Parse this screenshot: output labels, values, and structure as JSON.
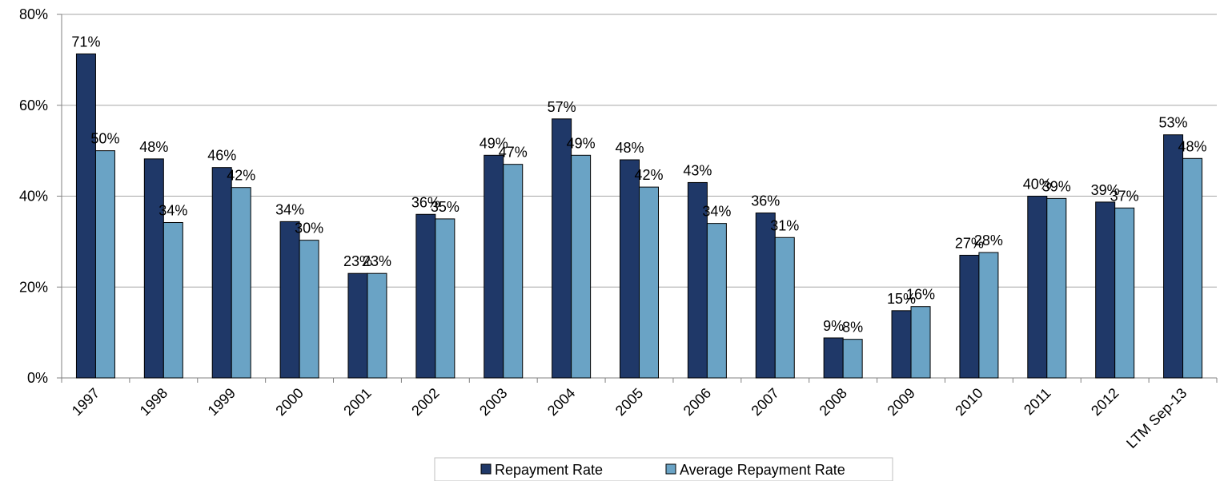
{
  "chart_data": {
    "type": "bar",
    "categories": [
      "1997",
      "1998",
      "1999",
      "2000",
      "2001",
      "2002",
      "2003",
      "2004",
      "2005",
      "2006",
      "2007",
      "2008",
      "2009",
      "2010",
      "2011",
      "2012",
      "LTM Sep-13"
    ],
    "series": [
      {
        "name": "Repayment Rate",
        "color": "#1f3868",
        "values": [
          71.3,
          48.2,
          46.3,
          34.4,
          23.0,
          36.0,
          49.0,
          57.0,
          48.0,
          43.0,
          36.3,
          8.8,
          14.8,
          27.0,
          40.0,
          38.7,
          53.5
        ],
        "labels": [
          "71%",
          "48%",
          "46%",
          "34%",
          "23%",
          "36%",
          "49%",
          "57%",
          "48%",
          "43%",
          "36%",
          "9%",
          "15%",
          "27%",
          "40%",
          "39%",
          "53%"
        ]
      },
      {
        "name": "Average Repayment Rate",
        "color": "#6aa3c5",
        "values": [
          50.0,
          34.2,
          41.9,
          30.3,
          23.0,
          35.0,
          47.0,
          49.0,
          42.0,
          34.0,
          30.9,
          8.5,
          15.7,
          27.6,
          39.5,
          37.4,
          48.3
        ],
        "labels": [
          "50%",
          "34%",
          "42%",
          "30%",
          "23%",
          "35%",
          "47%",
          "49%",
          "42%",
          "34%",
          "31%",
          "8%",
          "16%",
          "28%",
          "39%",
          "37%",
          "48%"
        ]
      }
    ],
    "y_ticks": [
      {
        "value": 0,
        "label": "0%"
      },
      {
        "value": 20,
        "label": "20%"
      },
      {
        "value": 40,
        "label": "40%"
      },
      {
        "value": 60,
        "label": "60%"
      },
      {
        "value": 80,
        "label": "80%"
      }
    ],
    "ylim": [
      0,
      80
    ],
    "grid": true,
    "legend_position": "bottom-center",
    "title": "",
    "xlabel": "",
    "ylabel": ""
  }
}
